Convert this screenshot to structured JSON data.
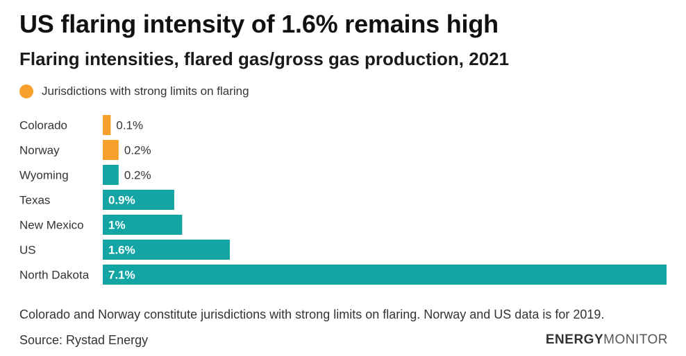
{
  "header": {
    "title": "US flaring intensity of 1.6% remains high",
    "subtitle": "Flaring intensities, flared gas/gross gas production, 2021"
  },
  "legend": {
    "label": "Jurisdictions with strong limits on flaring",
    "color": "#f7a12c"
  },
  "colors": {
    "highlight": "#f7a12c",
    "default": "#12a5a4"
  },
  "chart_data": {
    "type": "bar",
    "orientation": "horizontal",
    "title": "US flaring intensity of 1.6% remains high",
    "subtitle": "Flaring intensities, flared gas/gross gas production, 2021",
    "categories": [
      "Colorado",
      "Norway",
      "Wyoming",
      "Texas",
      "New Mexico",
      "US",
      "North Dakota"
    ],
    "values": [
      0.1,
      0.2,
      0.2,
      0.9,
      1.0,
      1.6,
      7.1
    ],
    "value_labels": [
      "0.1%",
      "0.2%",
      "0.2%",
      "0.9%",
      "1%",
      "1.6%",
      "7.1%"
    ],
    "highlighted": [
      true,
      true,
      false,
      false,
      false,
      false,
      false
    ],
    "legend": [
      "Jurisdictions with strong limits on flaring"
    ],
    "xlim": [
      0,
      7.1
    ],
    "grid": false
  },
  "footer": {
    "note": "Colorado and Norway constitute jurisdictions with strong limits on flaring. Norway and US data is for 2019.",
    "source": "Source: Rystad Energy",
    "brand_bold": "ENERGY",
    "brand_light": "MONITOR"
  }
}
